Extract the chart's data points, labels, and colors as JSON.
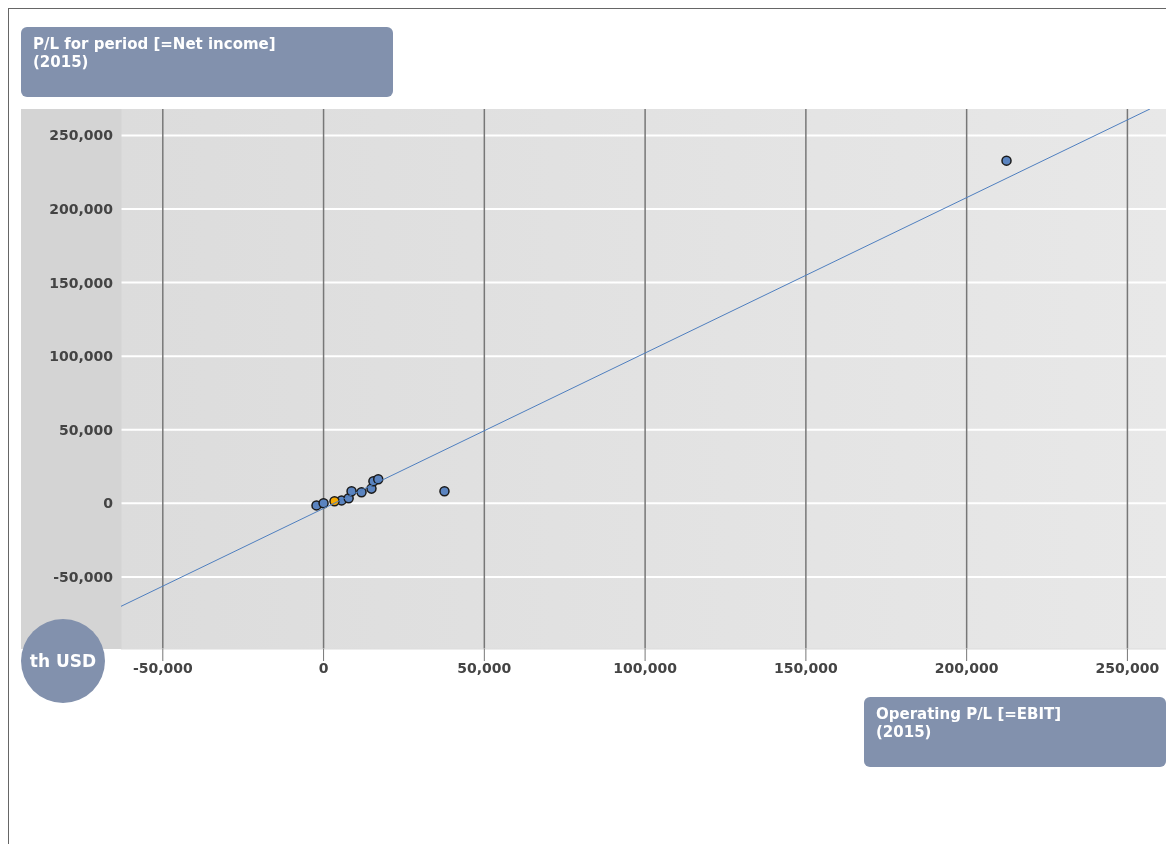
{
  "chart_data": {
    "type": "scatter",
    "xlabel": "Operating P/L [=EBIT] (2015)",
    "ylabel": "P/L for period [=Net income] (2015)",
    "annotations": [
      "th USD"
    ],
    "xlim": [
      -63000,
      262000
    ],
    "ylim": [
      -99000,
      268000
    ],
    "xticks": [
      {
        "value": -50000,
        "label": "-50,000"
      },
      0,
      {
        "value": 50000,
        "label": "50,000"
      },
      {
        "value": 100000,
        "label": "100,000"
      },
      {
        "value": 150000,
        "label": "150,000"
      },
      {
        "value": 200000,
        "label": "200,000"
      },
      {
        "value": 250000,
        "label": "250,000"
      }
    ],
    "yticks": [
      {
        "value": -50000,
        "label": "-50,000"
      },
      0,
      {
        "value": 50000,
        "label": "50,000"
      },
      {
        "value": 100000,
        "label": "100,000"
      },
      {
        "value": 150000,
        "label": "150,000"
      },
      {
        "value": 200000,
        "label": "200,000"
      },
      {
        "value": 250000,
        "label": "250,000"
      }
    ],
    "grid": true,
    "marker": "circle",
    "series": [
      {
        "color": "#5b84c0",
        "x": [
          -2200,
          0,
          5600,
          7800,
          8700,
          11800,
          14900,
          15500,
          17000,
          37600,
          212400
        ],
        "values": [
          -1400,
          0,
          2000,
          3400,
          8200,
          7500,
          10000,
          15000,
          16400,
          8200,
          232900
        ]
      },
      {
        "color": "#f5a800",
        "x": [
          3400
        ],
        "values": [
          1400
        ]
      },
      {
        "type": "line",
        "marker": "none",
        "color": "#4f7fbf",
        "x": [
          -63000,
          257000
        ],
        "values": [
          -70000,
          268000
        ]
      }
    ]
  }
}
